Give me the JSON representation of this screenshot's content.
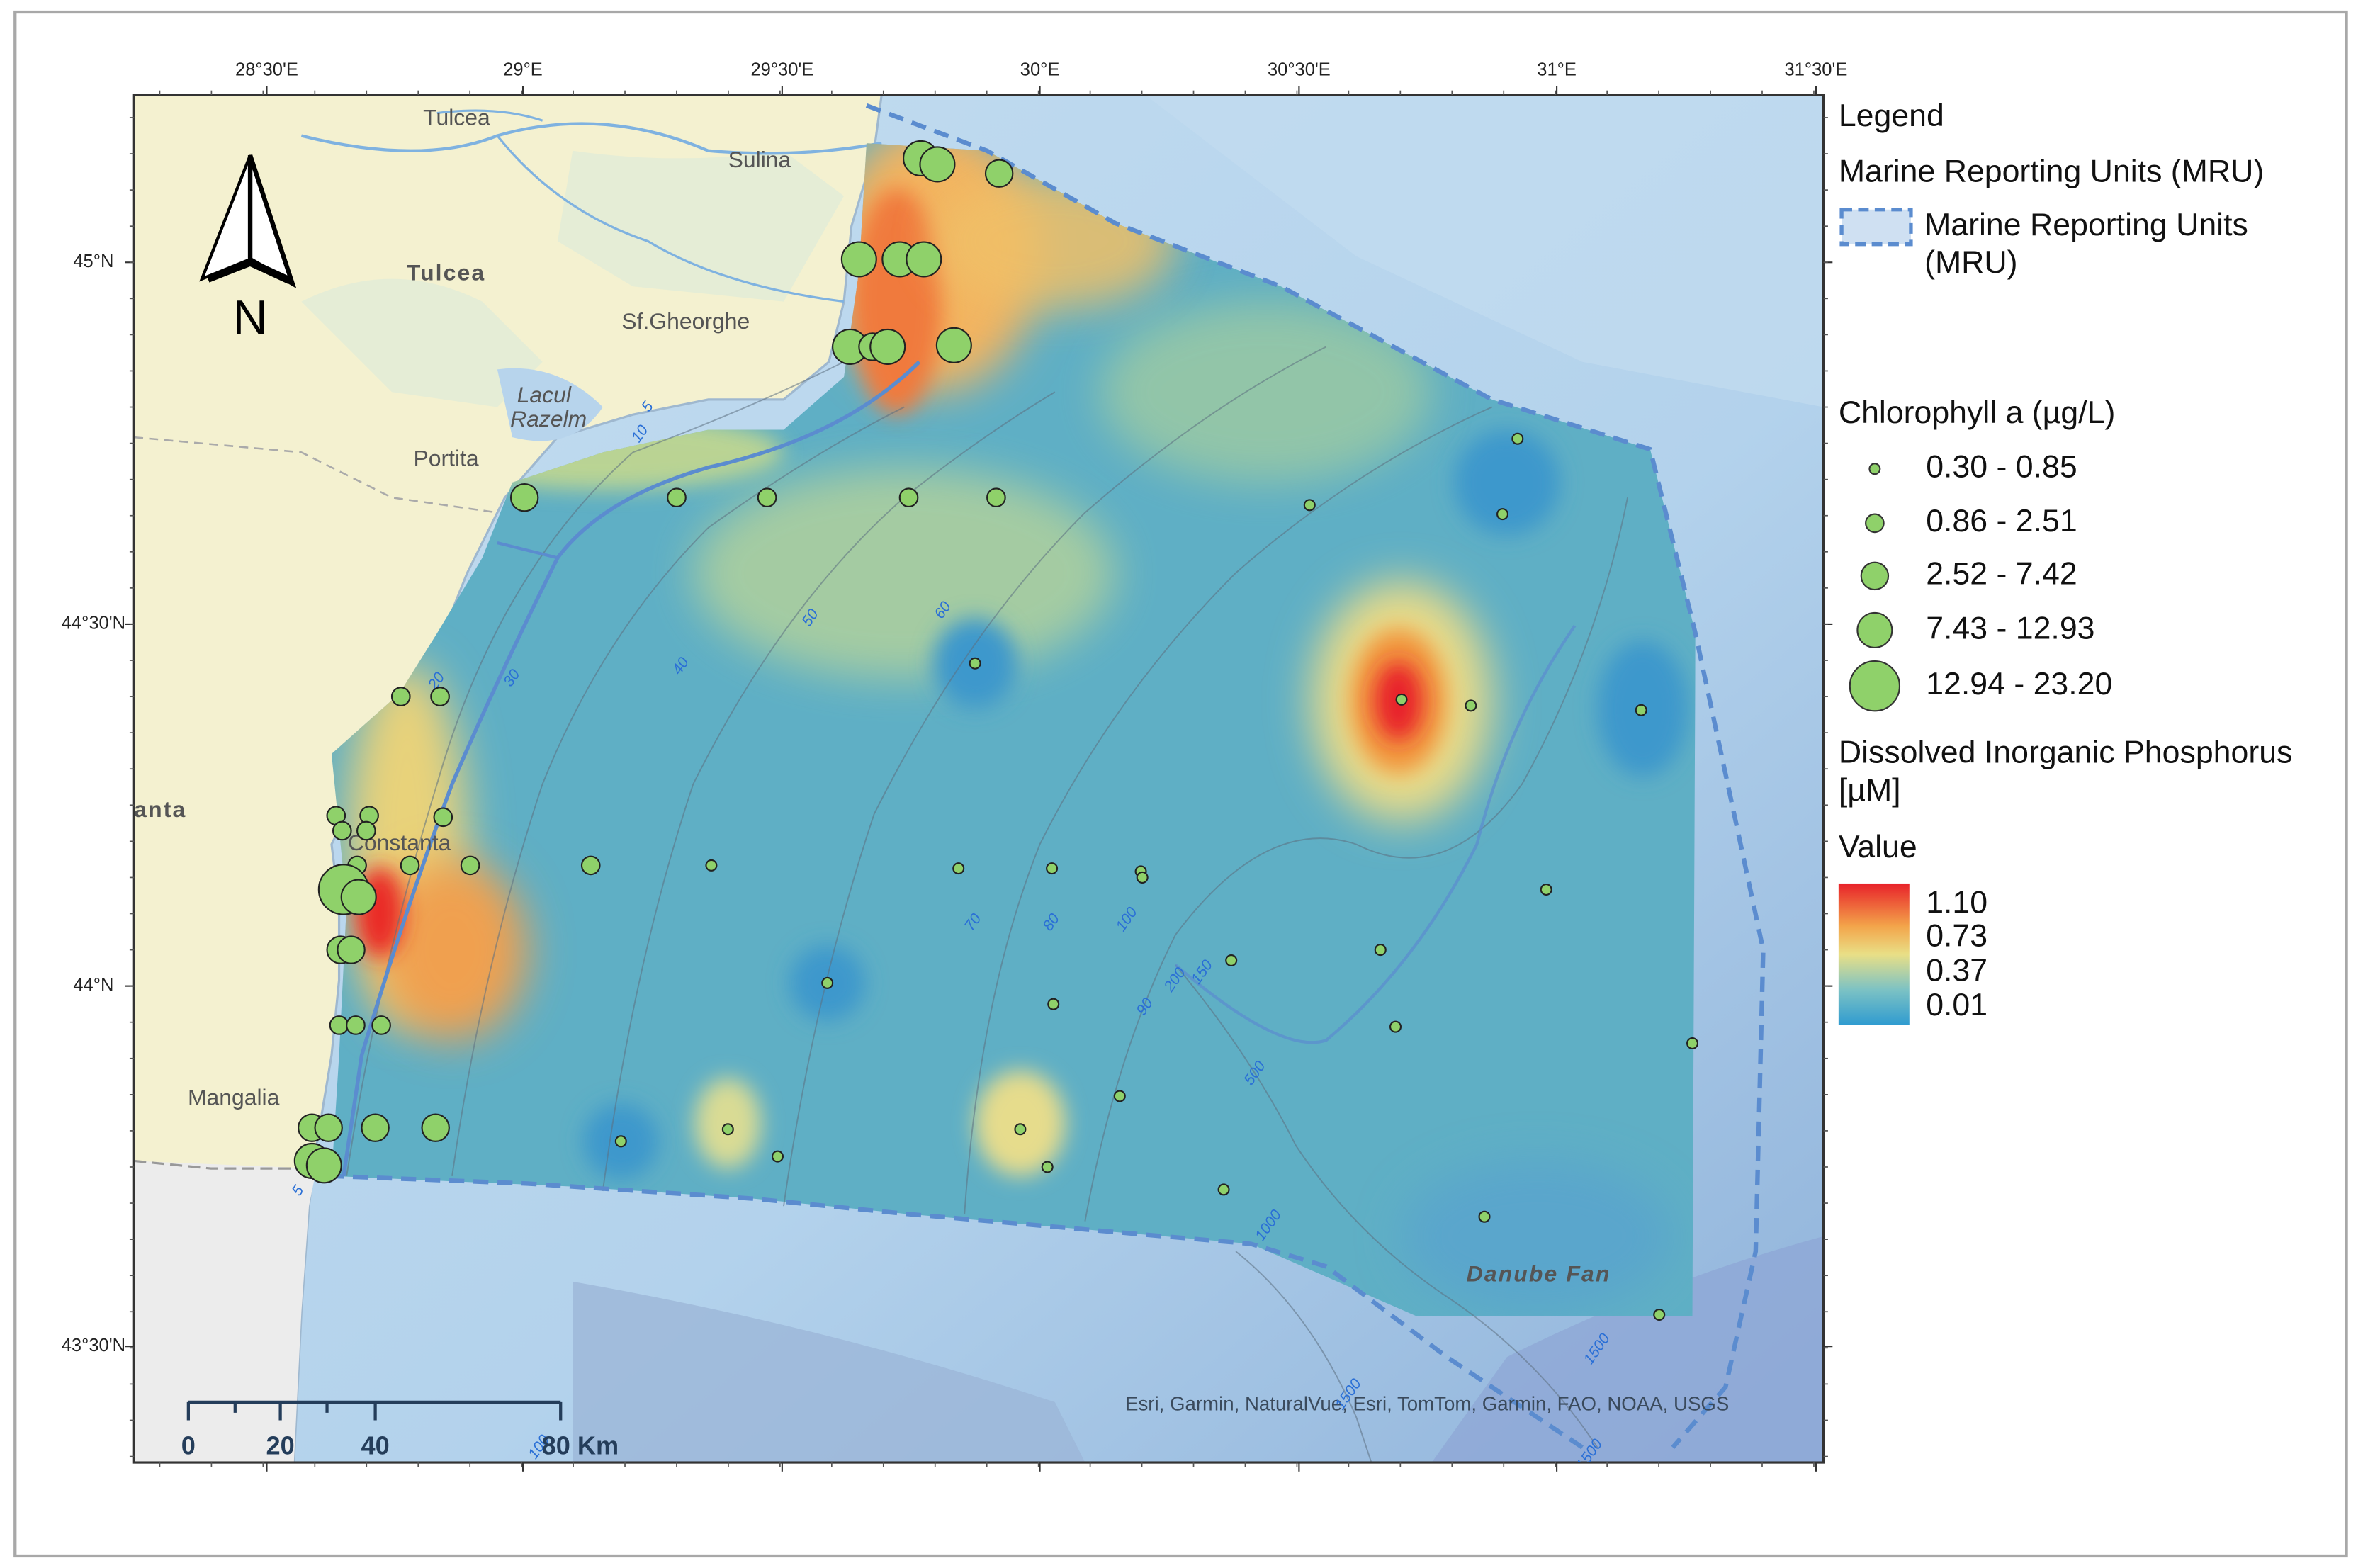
{
  "map": {
    "longitude_ticks": [
      "28°30'E",
      "29°E",
      "29°30'E",
      "30°E",
      "30°30'E",
      "31°E",
      "31°30'E"
    ],
    "latitude_ticks": [
      "45°N",
      "44°30'N",
      "44°N",
      "43°30'N"
    ],
    "places": {
      "tulcea_small": "Tulcea",
      "sulina": "Sulina",
      "tulcea": "Tulcea",
      "sf_gheorghe": "Sf.Gheorghe",
      "lacul": "Lacul",
      "razelm": "Razelm",
      "portita": "Portita",
      "constanta_region": "anta",
      "constanta": "Constanta",
      "mangalia": "Mangalia",
      "danube_fan": "Danube Fan"
    },
    "depth_labels": [
      "5",
      "10",
      "20",
      "30",
      "40",
      "50",
      "60",
      "70",
      "80",
      "90",
      "100",
      "150",
      "200",
      "500",
      "1000",
      "1500",
      "1500",
      "1500",
      "5",
      "100"
    ],
    "north_arrow": "N",
    "scale_bar": [
      "0",
      "20",
      "40",
      "80 Km"
    ],
    "attribution": "Esri, Garmin, NaturalVue, Esri, TomTom, Garmin, FAO, NOAA, USGS"
  },
  "legend": {
    "title": "Legend",
    "mru_heading": "Marine Reporting Units (MRU)",
    "mru_entry": "Marine Reporting Units (MRU)",
    "chlorophyll_title": "Chlorophyll a (µg/L)",
    "chlorophyll_classes": [
      "0.30 - 0.85",
      "0.86 - 2.51",
      "2.52 - 7.42",
      "7.43 - 12.93",
      "12.94 - 23.20"
    ],
    "dip_title": "Dissolved Inorganic Phosphorus [µM]",
    "value_title": "Value",
    "value_labels": [
      "1.10",
      "0.73",
      "0.37",
      "0.01"
    ]
  }
}
